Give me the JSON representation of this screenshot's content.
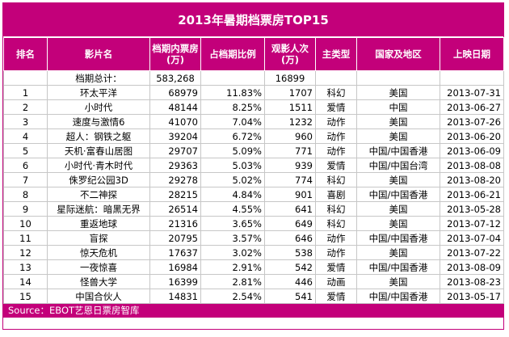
{
  "title": "2013年暑期档票房TOP15",
  "headers": [
    "排名",
    "影片名",
    "档期内票房(万)",
    "占档期比例",
    "观影人次(万)",
    "主类型",
    "国家及地区",
    "上映日期"
  ],
  "total": {
    "label": "档期总计：",
    "box_office": "583,268",
    "audience": "16899"
  },
  "rows": [
    {
      "rank": "1",
      "film": "环太平洋",
      "box_office": "68979",
      "share": "11.83%",
      "audience": "1707",
      "genre": "科幻",
      "region": "美国",
      "date": "2013-07-31"
    },
    {
      "rank": "2",
      "film": "小时代",
      "box_office": "48144",
      "share": "8.25%",
      "audience": "1511",
      "genre": "爱情",
      "region": "中国",
      "date": "2013-06-27"
    },
    {
      "rank": "3",
      "film": "速度与激情6",
      "box_office": "41070",
      "share": "7.04%",
      "audience": "1232",
      "genre": "动作",
      "region": "美国",
      "date": "2013-07-26"
    },
    {
      "rank": "4",
      "film": "超人：钢铁之躯",
      "box_office": "39204",
      "share": "6.72%",
      "audience": "960",
      "genre": "动作",
      "region": "美国",
      "date": "2013-06-20"
    },
    {
      "rank": "5",
      "film": "天机·富春山居图",
      "box_office": "29707",
      "share": "5.09%",
      "audience": "771",
      "genre": "动作",
      "region": "中国/中国香港",
      "date": "2013-06-09"
    },
    {
      "rank": "6",
      "film": "小时代·青木时代",
      "box_office": "29363",
      "share": "5.03%",
      "audience": "939",
      "genre": "爱情",
      "region": "中国/中国台湾",
      "date": "2013-08-08"
    },
    {
      "rank": "7",
      "film": "侏罗纪公园3D",
      "box_office": "29278",
      "share": "5.02%",
      "audience": "774",
      "genre": "科幻",
      "region": "美国",
      "date": "2013-08-20"
    },
    {
      "rank": "8",
      "film": "不二神探",
      "box_office": "28215",
      "share": "4.84%",
      "audience": "901",
      "genre": "喜剧",
      "region": "中国/中国香港",
      "date": "2013-06-21"
    },
    {
      "rank": "9",
      "film": "星际迷航：暗黑无界",
      "box_office": "26514",
      "share": "4.55%",
      "audience": "641",
      "genre": "科幻",
      "region": "美国",
      "date": "2013-05-28"
    },
    {
      "rank": "10",
      "film": "重返地球",
      "box_office": "21316",
      "share": "3.65%",
      "audience": "649",
      "genre": "科幻",
      "region": "美国",
      "date": "2013-07-12"
    },
    {
      "rank": "11",
      "film": "盲探",
      "box_office": "20795",
      "share": "3.57%",
      "audience": "646",
      "genre": "动作",
      "region": "中国/中国香港",
      "date": "2013-07-04"
    },
    {
      "rank": "12",
      "film": "惊天危机",
      "box_office": "17637",
      "share": "3.02%",
      "audience": "538",
      "genre": "动作",
      "region": "美国",
      "date": "2013-07-22"
    },
    {
      "rank": "13",
      "film": "一夜惊喜",
      "box_office": "16984",
      "share": "2.91%",
      "audience": "542",
      "genre": "爱情",
      "region": "中国/中国香港",
      "date": "2013-08-09"
    },
    {
      "rank": "14",
      "film": "怪兽大学",
      "box_office": "16399",
      "share": "2.81%",
      "audience": "446",
      "genre": "动画",
      "region": "美国",
      "date": "2013-08-23"
    },
    {
      "rank": "15",
      "film": "中国合伙人",
      "box_office": "14831",
      "share": "2.54%",
      "audience": "541",
      "genre": "爱情",
      "region": "中国/中国香港",
      "date": "2013-05-17"
    }
  ],
  "source": "Source：EBOT艺恩日票房智库",
  "colors": {
    "header_bg": "#c3007a",
    "header_text": "#ffffff",
    "grid": "#c7c7c7"
  },
  "chart_data": {
    "type": "table",
    "title": "2013年暑期档票房TOP15",
    "columns": [
      "排名",
      "影片名",
      "档期内票房(万)",
      "占档期比例",
      "观影人次(万)",
      "主类型",
      "国家及地区",
      "上映日期"
    ]
  }
}
